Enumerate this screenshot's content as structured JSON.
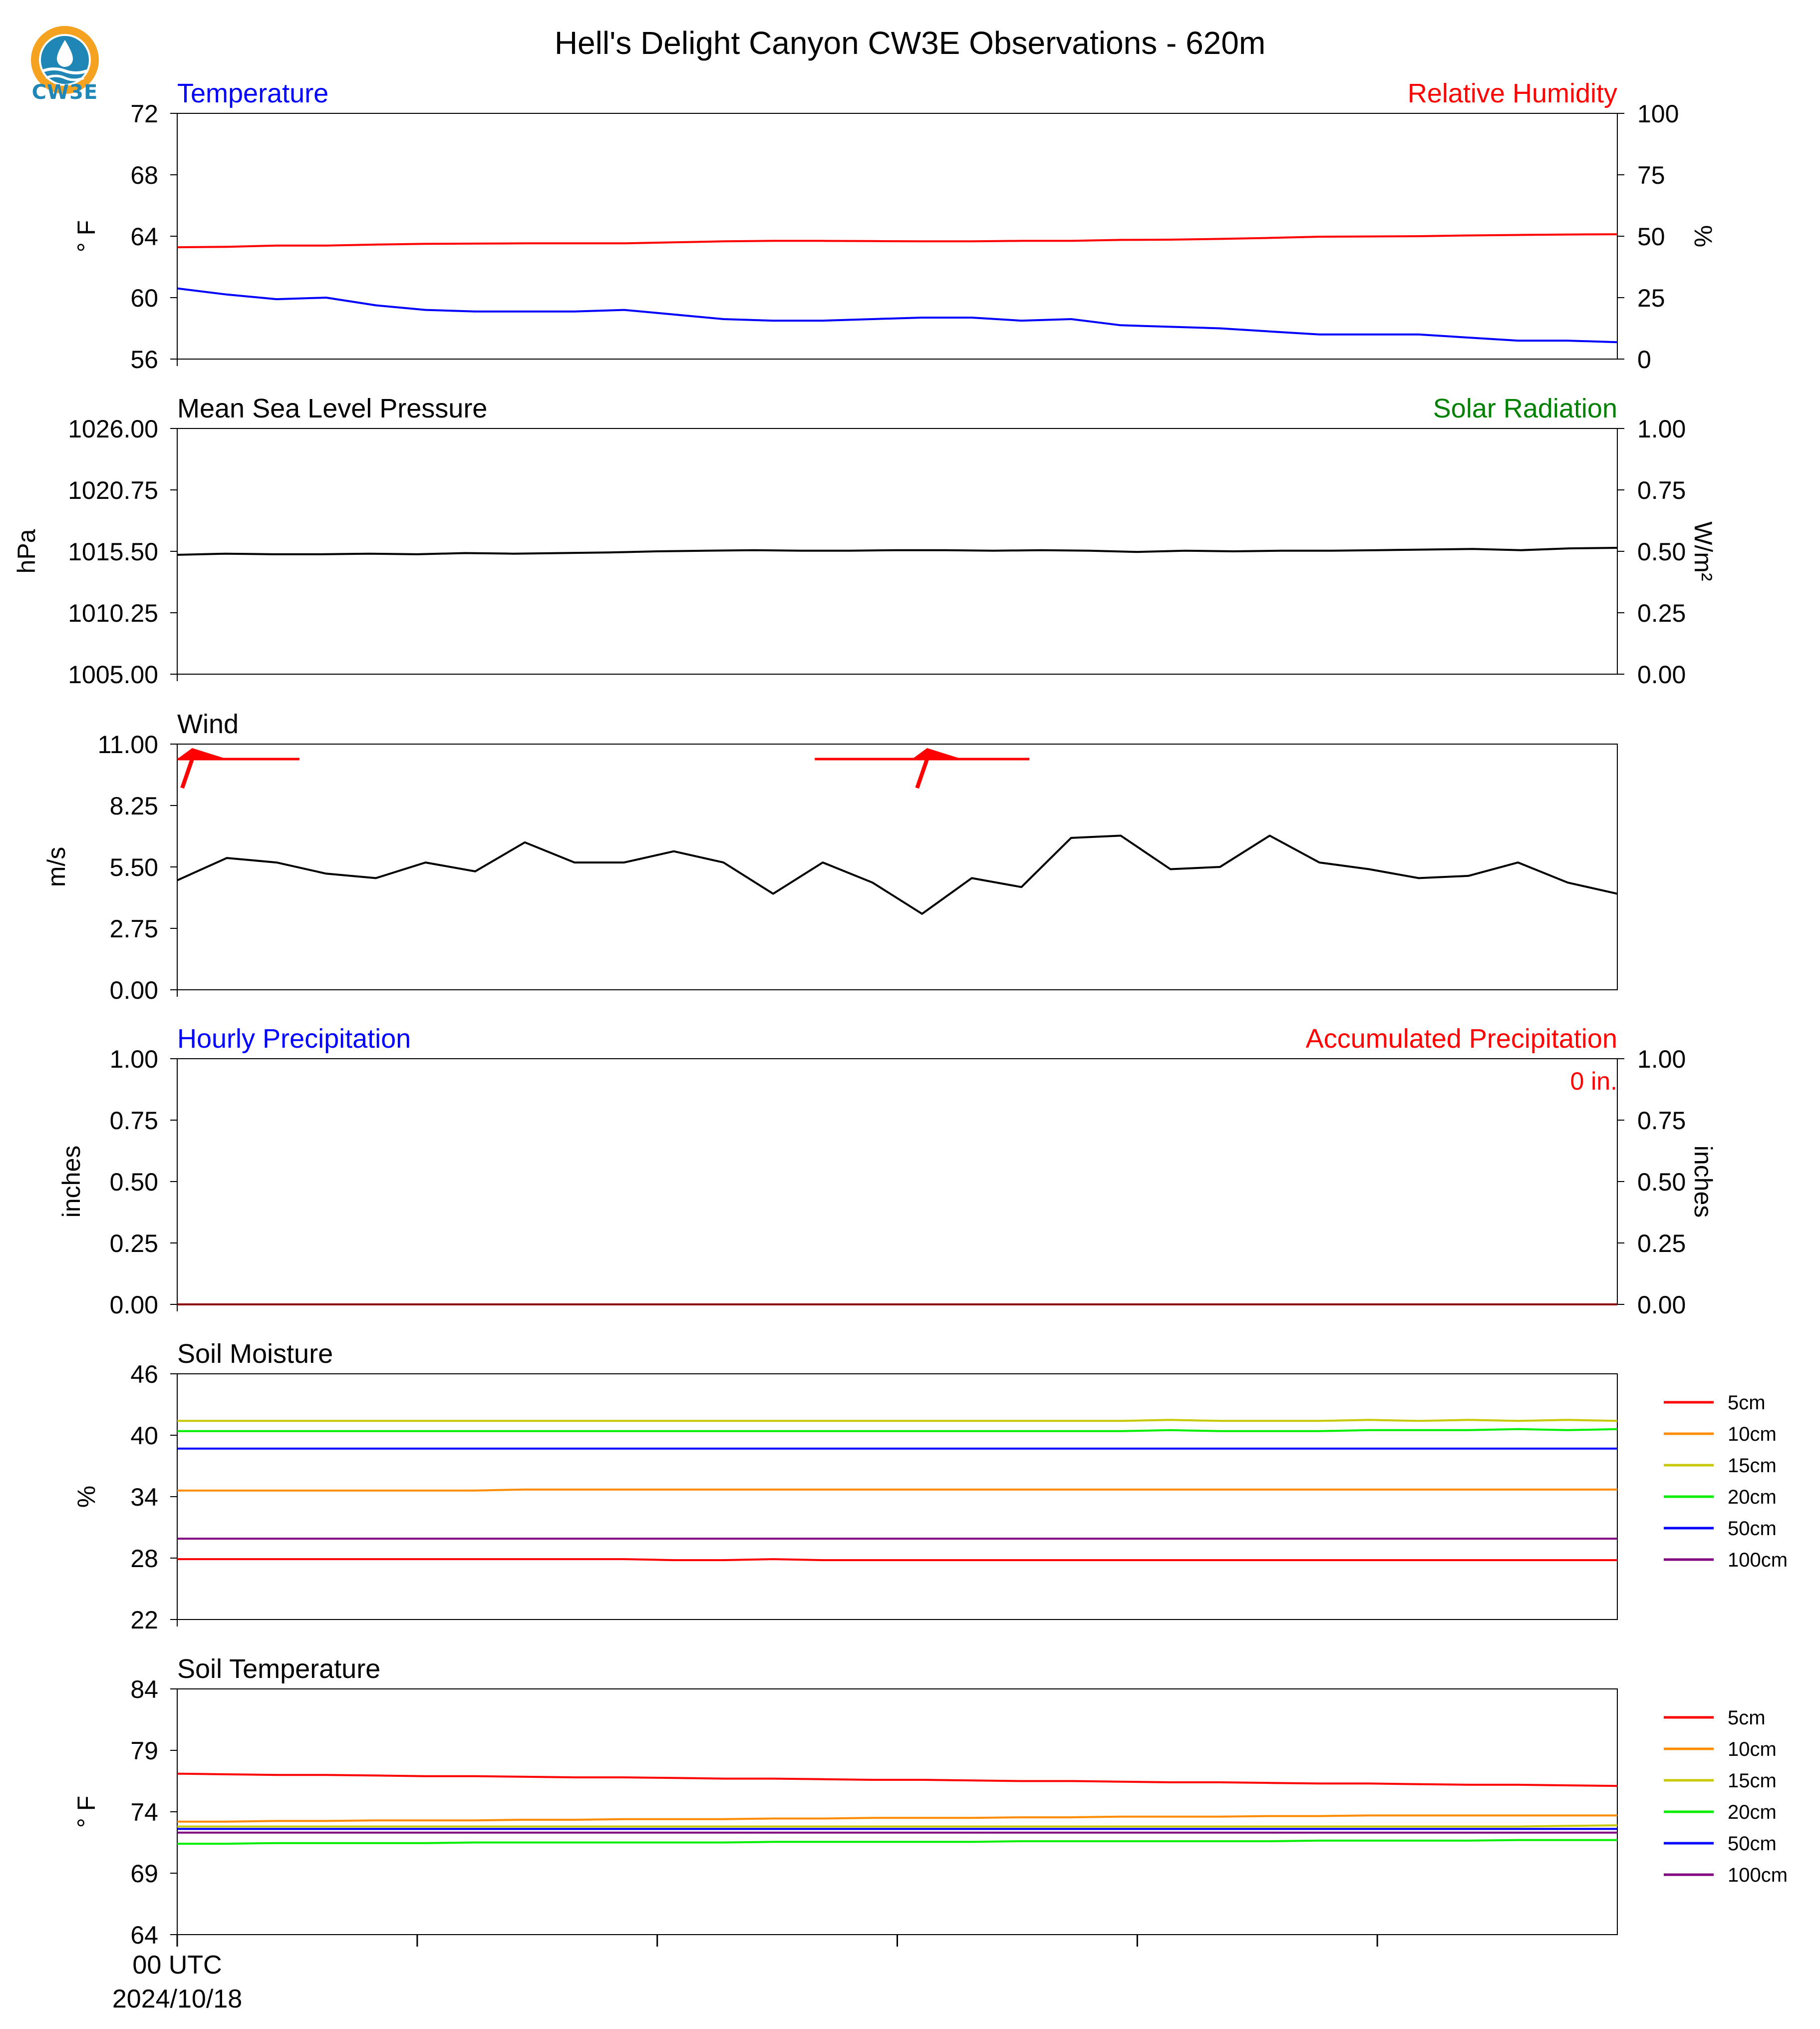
{
  "title": "Hell's Delight Canyon CW3E Observations - 620m",
  "logo": {
    "text": "CW3E",
    "icon": "cw3e-water-drop-logo",
    "colors": {
      "orange": "#f4a21f",
      "blue": "#1f86b6"
    }
  },
  "x_axis": {
    "label": "00 UTC",
    "date": "2024/10/18",
    "tick_count": 7
  },
  "colors": {
    "black": "#000000",
    "blue": "#0000ff",
    "red": "#ff0000",
    "green": "#008000"
  },
  "chart_data": [
    {
      "type": "line",
      "id": "temp_rh",
      "title_left": "Temperature",
      "title_right": "Relative Humidity",
      "ylabel_left": "° F",
      "ylabel_right": "%",
      "ylim_left": [
        56,
        72
      ],
      "ylim_right": [
        0,
        100
      ],
      "yticks_left": [
        "56",
        "60",
        "64",
        "68",
        "72"
      ],
      "yticks_right": [
        "0",
        "25",
        "50",
        "75",
        "100"
      ],
      "series": [
        {
          "color": "#0000ff",
          "axis": "left",
          "values": [
            60.6,
            60.2,
            59.9,
            60.0,
            59.5,
            59.2,
            59.1,
            59.1,
            59.1,
            59.2,
            58.9,
            58.6,
            58.5,
            58.5,
            58.6,
            58.7,
            58.7,
            58.5,
            58.6,
            58.2,
            58.1,
            58.0,
            57.8,
            57.6,
            57.6,
            57.6,
            57.4,
            57.2,
            57.2,
            57.1
          ]
        },
        {
          "color": "#ff0000",
          "axis": "right",
          "values": [
            45.5,
            45.7,
            46.2,
            46.2,
            46.6,
            46.9,
            47.0,
            47.1,
            47.1,
            47.1,
            47.5,
            47.9,
            48.1,
            48.1,
            48.0,
            47.9,
            47.9,
            48.1,
            48.1,
            48.5,
            48.6,
            48.9,
            49.3,
            49.8,
            49.9,
            50.0,
            50.3,
            50.5,
            50.7,
            50.8
          ]
        }
      ]
    },
    {
      "type": "line",
      "id": "pressure",
      "title_left": "Mean Sea Level Pressure",
      "title_right": "Solar Radiation",
      "ylabel_left": "hPa",
      "ylabel_right": "W/m²",
      "ylim_left": [
        1005,
        1026
      ],
      "ylim_right": [
        0,
        1
      ],
      "yticks_left": [
        "1005.00",
        "1010.25",
        "1015.50",
        "1020.75",
        "1026.00"
      ],
      "yticks_right": [
        "0.00",
        "0.25",
        "0.50",
        "0.75",
        "1.00"
      ],
      "series": [
        {
          "color": "#000000",
          "axis": "left",
          "values": [
            1015.2,
            1015.3,
            1015.25,
            1015.25,
            1015.3,
            1015.25,
            1015.35,
            1015.3,
            1015.35,
            1015.4,
            1015.5,
            1015.55,
            1015.6,
            1015.55,
            1015.55,
            1015.6,
            1015.6,
            1015.55,
            1015.6,
            1015.55,
            1015.45,
            1015.55,
            1015.5,
            1015.55,
            1015.55,
            1015.6,
            1015.65,
            1015.7,
            1015.6,
            1015.75,
            1015.8
          ]
        }
      ]
    },
    {
      "type": "line",
      "id": "wind",
      "title_left": "Wind",
      "ylabel_left": "m/s",
      "ylim_left": [
        0,
        11
      ],
      "yticks_left": [
        "0.00",
        "2.75",
        "5.50",
        "8.25",
        "11.00"
      ],
      "series": [
        {
          "color": "#000000",
          "axis": "left",
          "values": [
            4.9,
            5.9,
            5.7,
            5.2,
            5.0,
            5.7,
            5.3,
            6.6,
            5.7,
            5.7,
            6.2,
            5.7,
            4.3,
            5.7,
            4.8,
            3.4,
            5.0,
            4.6,
            6.8,
            6.9,
            5.4,
            5.5,
            6.9,
            5.7,
            5.4,
            5.0,
            5.1,
            5.7,
            4.8,
            4.3
          ]
        }
      ],
      "barbs": [
        {
          "x_index": 0,
          "color": "#ff0000"
        },
        {
          "x_index": 15,
          "color": "#ff0000"
        }
      ]
    },
    {
      "type": "line",
      "id": "precip",
      "title_left": "Hourly Precipitation",
      "title_right": "Accumulated Precipitation",
      "ylabel_left": "inches",
      "ylabel_right": "inches",
      "ylim_left": [
        0,
        1
      ],
      "ylim_right": [
        0,
        1
      ],
      "yticks_left": [
        "0.00",
        "0.25",
        "0.50",
        "0.75",
        "1.00"
      ],
      "yticks_right": [
        "0.00",
        "0.25",
        "0.50",
        "0.75",
        "1.00"
      ],
      "annotation": "0 in.",
      "series": [
        {
          "color": "#8b0000",
          "axis": "left",
          "values": [
            0,
            0
          ]
        }
      ]
    },
    {
      "type": "line",
      "id": "soil_moisture",
      "title_left": "Soil Moisture",
      "ylabel_left": "%",
      "ylim_left": [
        22,
        46
      ],
      "yticks_left": [
        "22",
        "28",
        "34",
        "40",
        "46"
      ],
      "series": [
        {
          "name": "5cm",
          "color": "#ff0000",
          "values": [
            27.9,
            27.9,
            27.9,
            27.9,
            27.9,
            27.9,
            27.9,
            27.9,
            27.9,
            27.9,
            27.8,
            27.8,
            27.9,
            27.8,
            27.8,
            27.8,
            27.8,
            27.8,
            27.8,
            27.8,
            27.8,
            27.8,
            27.8,
            27.8,
            27.8,
            27.8,
            27.8,
            27.8,
            27.8,
            27.8
          ]
        },
        {
          "name": "10cm",
          "color": "#ff8c00",
          "values": [
            34.6,
            34.6,
            34.6,
            34.6,
            34.6,
            34.6,
            34.6,
            34.7,
            34.7,
            34.7,
            34.7,
            34.7,
            34.7,
            34.7,
            34.7,
            34.7,
            34.7,
            34.7,
            34.7,
            34.7,
            34.7,
            34.7,
            34.7,
            34.7,
            34.7,
            34.7,
            34.7,
            34.7,
            34.7,
            34.7
          ]
        },
        {
          "name": "15cm",
          "color": "#c8c800",
          "values": [
            41.4,
            41.4,
            41.4,
            41.4,
            41.4,
            41.4,
            41.4,
            41.4,
            41.4,
            41.4,
            41.4,
            41.4,
            41.4,
            41.4,
            41.4,
            41.4,
            41.4,
            41.4,
            41.4,
            41.4,
            41.5,
            41.4,
            41.4,
            41.4,
            41.5,
            41.4,
            41.5,
            41.4,
            41.5,
            41.4
          ]
        },
        {
          "name": "20cm",
          "color": "#00ee00",
          "values": [
            40.4,
            40.4,
            40.4,
            40.4,
            40.4,
            40.4,
            40.4,
            40.4,
            40.4,
            40.4,
            40.4,
            40.4,
            40.4,
            40.4,
            40.4,
            40.4,
            40.4,
            40.4,
            40.4,
            40.4,
            40.5,
            40.4,
            40.4,
            40.4,
            40.5,
            40.5,
            40.5,
            40.6,
            40.5,
            40.6
          ]
        },
        {
          "name": "50cm",
          "color": "#0000ff",
          "values": [
            38.7,
            38.7,
            38.7,
            38.7,
            38.7,
            38.7,
            38.7,
            38.7,
            38.7,
            38.7,
            38.7,
            38.7,
            38.7,
            38.7,
            38.7,
            38.7,
            38.7,
            38.7,
            38.7,
            38.7,
            38.7,
            38.7,
            38.7,
            38.7,
            38.7,
            38.7,
            38.7,
            38.7,
            38.7,
            38.7
          ]
        },
        {
          "name": "100cm",
          "color": "#800080",
          "values": [
            29.9,
            29.9,
            29.9,
            29.9,
            29.9,
            29.9,
            29.9,
            29.9,
            29.9,
            29.9,
            29.9,
            29.9,
            29.9,
            29.9,
            29.9,
            29.9,
            29.9,
            29.9,
            29.9,
            29.9,
            29.9,
            29.9,
            29.9,
            29.9,
            29.9,
            29.9,
            29.9,
            29.9,
            29.9,
            29.9
          ]
        }
      ]
    },
    {
      "type": "line",
      "id": "soil_temperature",
      "title_left": "Soil Temperature",
      "ylabel_left": "° F",
      "ylim_left": [
        64,
        84
      ],
      "yticks_left": [
        "64",
        "69",
        "74",
        "79",
        "84"
      ],
      "series": [
        {
          "name": "5cm",
          "color": "#ff0000",
          "values": [
            77.1,
            77.05,
            77.0,
            77.0,
            76.95,
            76.9,
            76.9,
            76.85,
            76.8,
            76.8,
            76.75,
            76.7,
            76.7,
            76.65,
            76.6,
            76.6,
            76.55,
            76.5,
            76.5,
            76.45,
            76.4,
            76.4,
            76.35,
            76.3,
            76.3,
            76.25,
            76.2,
            76.2,
            76.15,
            76.1
          ]
        },
        {
          "name": "10cm",
          "color": "#ff8c00",
          "values": [
            73.2,
            73.2,
            73.25,
            73.25,
            73.3,
            73.3,
            73.3,
            73.35,
            73.35,
            73.4,
            73.4,
            73.4,
            73.45,
            73.45,
            73.5,
            73.5,
            73.5,
            73.55,
            73.55,
            73.6,
            73.6,
            73.6,
            73.65,
            73.65,
            73.7,
            73.7,
            73.7,
            73.7,
            73.7,
            73.7
          ]
        },
        {
          "name": "15cm",
          "color": "#c8c800",
          "values": [
            72.8,
            72.8,
            72.8,
            72.8,
            72.8,
            72.8,
            72.8,
            72.8,
            72.8,
            72.8,
            72.8,
            72.8,
            72.8,
            72.8,
            72.8,
            72.8,
            72.8,
            72.8,
            72.8,
            72.8,
            72.8,
            72.8,
            72.8,
            72.8,
            72.8,
            72.8,
            72.8,
            72.8,
            72.85,
            72.9
          ]
        },
        {
          "name": "20cm",
          "color": "#00ee00",
          "values": [
            71.4,
            71.4,
            71.45,
            71.45,
            71.45,
            71.45,
            71.5,
            71.5,
            71.5,
            71.5,
            71.5,
            71.5,
            71.55,
            71.55,
            71.55,
            71.55,
            71.55,
            71.6,
            71.6,
            71.6,
            71.6,
            71.6,
            71.6,
            71.65,
            71.65,
            71.65,
            71.65,
            71.7,
            71.7,
            71.7
          ]
        },
        {
          "name": "50cm",
          "color": "#0000ff",
          "values": [
            72.6,
            72.6,
            72.6,
            72.6,
            72.6,
            72.6,
            72.6,
            72.6,
            72.6,
            72.6,
            72.6,
            72.6,
            72.6,
            72.6,
            72.6,
            72.6,
            72.6,
            72.6,
            72.6,
            72.6,
            72.6,
            72.6,
            72.6,
            72.6,
            72.6,
            72.6,
            72.6,
            72.6,
            72.6,
            72.6
          ]
        },
        {
          "name": "100cm",
          "color": "#800080",
          "values": [
            72.3,
            72.3,
            72.3,
            72.3,
            72.3,
            72.3,
            72.3,
            72.3,
            72.3,
            72.3,
            72.3,
            72.3,
            72.3,
            72.3,
            72.3,
            72.3,
            72.3,
            72.3,
            72.3,
            72.3,
            72.3,
            72.3,
            72.3,
            72.3,
            72.3,
            72.3,
            72.3,
            72.3,
            72.3,
            72.3
          ]
        }
      ]
    }
  ]
}
